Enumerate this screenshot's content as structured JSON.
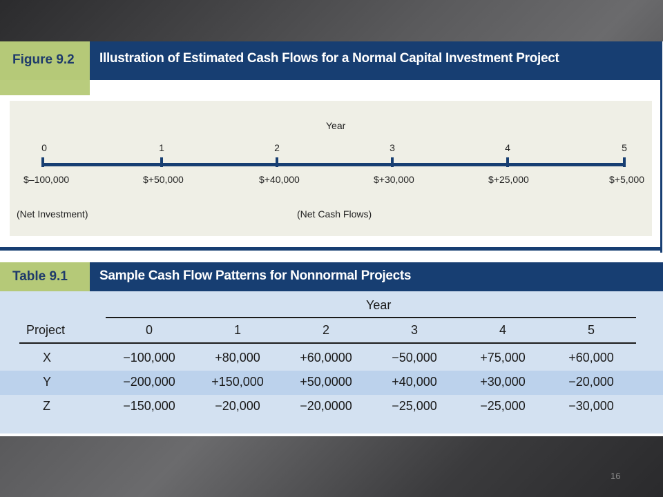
{
  "figure": {
    "label": "Figure 9.2",
    "title": "Illustration of Estimated Cash Flows for a Normal Capital Investment Project",
    "axis_label": "Year",
    "years": [
      "0",
      "1",
      "2",
      "3",
      "4",
      "5"
    ],
    "cash_flows": [
      "$–100,000",
      "$+50,000",
      "$+40,000",
      "$+30,000",
      "$+25,000",
      "$+5,000"
    ],
    "note_left": "(Net Investment)",
    "note_center": "(Net Cash Flows)"
  },
  "table": {
    "label": "Table 9.1",
    "title": "Sample Cash Flow Patterns for Nonnormal Projects",
    "year_header": "Year",
    "project_header": "Project",
    "columns": [
      "0",
      "1",
      "2",
      "3",
      "4",
      "5"
    ],
    "rows": [
      {
        "project": "X",
        "values": [
          "−100,000",
          "+80,000",
          "+60,0000",
          "−50,000",
          "+75,000",
          "+60,000"
        ]
      },
      {
        "project": "Y",
        "values": [
          "−200,000",
          "+150,000",
          "+50,0000",
          "+40,000",
          "+30,000",
          "−20,000"
        ]
      },
      {
        "project": "Z",
        "values": [
          "−150,000",
          "−20,000",
          "−20,0000",
          "−25,000",
          "−25,000",
          "−30,000"
        ]
      }
    ]
  },
  "slide": {
    "page_number": "16"
  },
  "colors": {
    "navy": "#173e72",
    "green": "#b5c978",
    "table_bg": "#d3e1f1",
    "row_alt": "#bcd2ec"
  }
}
